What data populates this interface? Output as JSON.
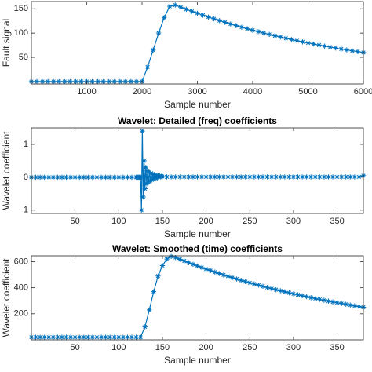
{
  "chart_data": [
    {
      "type": "line",
      "xlabel": "Sample number",
      "ylabel": "Fault signal",
      "color": "#0072bd",
      "marker": "*",
      "xlim": [
        0,
        6000
      ],
      "xticks": [
        1000,
        2000,
        3000,
        4000,
        5000,
        6000
      ],
      "ylim": [
        -5,
        165
      ],
      "yticks": [
        50,
        100,
        150
      ],
      "x": [
        0,
        100,
        200,
        300,
        400,
        500,
        600,
        700,
        800,
        900,
        1000,
        1100,
        1200,
        1300,
        1400,
        1500,
        1600,
        1700,
        1800,
        1900,
        2000,
        2100,
        2200,
        2300,
        2400,
        2500,
        2600,
        2700,
        2800,
        2900,
        3000,
        3100,
        3200,
        3300,
        3400,
        3500,
        3600,
        3700,
        3800,
        3900,
        4000,
        4100,
        4200,
        4300,
        4400,
        4500,
        4600,
        4700,
        4800,
        4900,
        5000,
        5100,
        5200,
        5300,
        5400,
        5500,
        5600,
        5700,
        5800,
        5900,
        6000
      ],
      "values": [
        0,
        0,
        0,
        0,
        0,
        0,
        0,
        0,
        0,
        0,
        0,
        0,
        0,
        0,
        0,
        0,
        0,
        0,
        0,
        0,
        0,
        30,
        65,
        100,
        132,
        155,
        157.7,
        153.3,
        149.0,
        144.9,
        140.8,
        136.8,
        133.0,
        129.3,
        125.6,
        122.1,
        118.7,
        115.4,
        112.1,
        109.0,
        105.9,
        103.0,
        100.1,
        97.3,
        94.6,
        91.9,
        89.3,
        86.8,
        84.4,
        82.0,
        79.7,
        77.5,
        75.3,
        73.2,
        71.2,
        69.2,
        67.2,
        65.3,
        63.5,
        61.7,
        60.0
      ]
    },
    {
      "type": "line",
      "title": "Wavelet: Detailed (freq) coefficients",
      "xlabel": "Sample number",
      "ylabel": "Wavelet coefficient",
      "color": "#0072bd",
      "marker": "*",
      "xlim": [
        0,
        380
      ],
      "xticks": [
        50,
        100,
        150,
        200,
        250,
        300,
        350
      ],
      "ylim": [
        -1.1,
        1.5
      ],
      "yticks": [
        -1,
        0,
        1
      ],
      "x": [
        0,
        5,
        10,
        15,
        20,
        25,
        30,
        35,
        40,
        45,
        50,
        55,
        60,
        65,
        70,
        75,
        80,
        85,
        90,
        95,
        100,
        105,
        110,
        115,
        120,
        121,
        122,
        123,
        124,
        125,
        126,
        127,
        128,
        129,
        130,
        131,
        132,
        133,
        134,
        135,
        136,
        137,
        138,
        139,
        140,
        141,
        142,
        143,
        144,
        145,
        146,
        147,
        148,
        149,
        150,
        155,
        160,
        165,
        170,
        175,
        180,
        185,
        190,
        195,
        200,
        205,
        210,
        215,
        220,
        225,
        230,
        235,
        240,
        245,
        250,
        255,
        260,
        265,
        270,
        275,
        280,
        285,
        290,
        295,
        300,
        305,
        310,
        315,
        320,
        325,
        330,
        335,
        340,
        345,
        350,
        355,
        360,
        365,
        370,
        375,
        380
      ],
      "values": [
        0,
        0,
        0,
        0,
        0,
        0,
        0,
        0,
        0,
        0,
        0,
        0,
        0,
        0,
        0,
        0,
        0,
        0,
        0,
        0,
        0,
        0,
        0,
        0,
        0,
        0,
        0,
        0,
        0,
        0,
        -1,
        1.4,
        -0.6,
        0.5,
        -0.35,
        0.3,
        -0.2,
        0.2,
        -0.15,
        0.15,
        -0.1,
        0.12,
        -0.08,
        0.1,
        -0.05,
        0.08,
        -0.03,
        0.06,
        -0.02,
        0.05,
        0,
        0.04,
        0.01,
        0.03,
        0.02,
        0.01,
        0.01,
        0.01,
        0.01,
        0.01,
        0.01,
        0.01,
        0.01,
        0.01,
        0.01,
        0.01,
        0.01,
        0.01,
        0.01,
        0.01,
        0.01,
        0.01,
        0.01,
        0.01,
        0.01,
        0.01,
        0.01,
        0.01,
        0.01,
        0.01,
        0.01,
        0.01,
        0.01,
        0.01,
        0.01,
        0.01,
        0.01,
        0.01,
        0.01,
        0.01,
        0.01,
        0.01,
        0.01,
        0.01,
        0.01,
        0.01,
        0.01,
        0.01,
        0.01,
        0.01,
        0.05
      ]
    },
    {
      "type": "line",
      "title": "Wavelet: Smoothed (time) coefficients",
      "xlabel": "Sample number",
      "ylabel": "Wavelet coefficient",
      "color": "#0072bd",
      "marker": "*",
      "xlim": [
        0,
        380
      ],
      "xticks": [
        50,
        100,
        150,
        200,
        250,
        300,
        350
      ],
      "ylim": [
        0,
        645
      ],
      "yticks": [
        200,
        400,
        600
      ],
      "x": [
        0,
        5,
        10,
        15,
        20,
        25,
        30,
        35,
        40,
        45,
        50,
        55,
        60,
        65,
        70,
        75,
        80,
        85,
        90,
        95,
        100,
        105,
        110,
        115,
        120,
        125,
        130,
        135,
        140,
        145,
        150,
        155,
        160,
        165,
        170,
        175,
        180,
        185,
        190,
        195,
        200,
        205,
        210,
        215,
        220,
        225,
        230,
        235,
        240,
        245,
        250,
        255,
        260,
        265,
        270,
        275,
        280,
        285,
        290,
        295,
        300,
        305,
        310,
        315,
        320,
        325,
        330,
        335,
        340,
        345,
        350,
        355,
        360,
        365,
        370,
        375,
        380
      ],
      "values": [
        20,
        20,
        20,
        20,
        20,
        20,
        20,
        20,
        20,
        20,
        20,
        20,
        20,
        20,
        20,
        20,
        20,
        20,
        20,
        20,
        20,
        20,
        20,
        20,
        20,
        20,
        100,
        230,
        370,
        490,
        570,
        620,
        640,
        632,
        618,
        605,
        592,
        580,
        567,
        555,
        543,
        532,
        520,
        509,
        498,
        488,
        477,
        467,
        457,
        447,
        438,
        429,
        420,
        411,
        402,
        393,
        385,
        377,
        369,
        361,
        353,
        346,
        338,
        331,
        324,
        317,
        310,
        304,
        297,
        291,
        285,
        279,
        273,
        267,
        261,
        256,
        250
      ]
    }
  ]
}
